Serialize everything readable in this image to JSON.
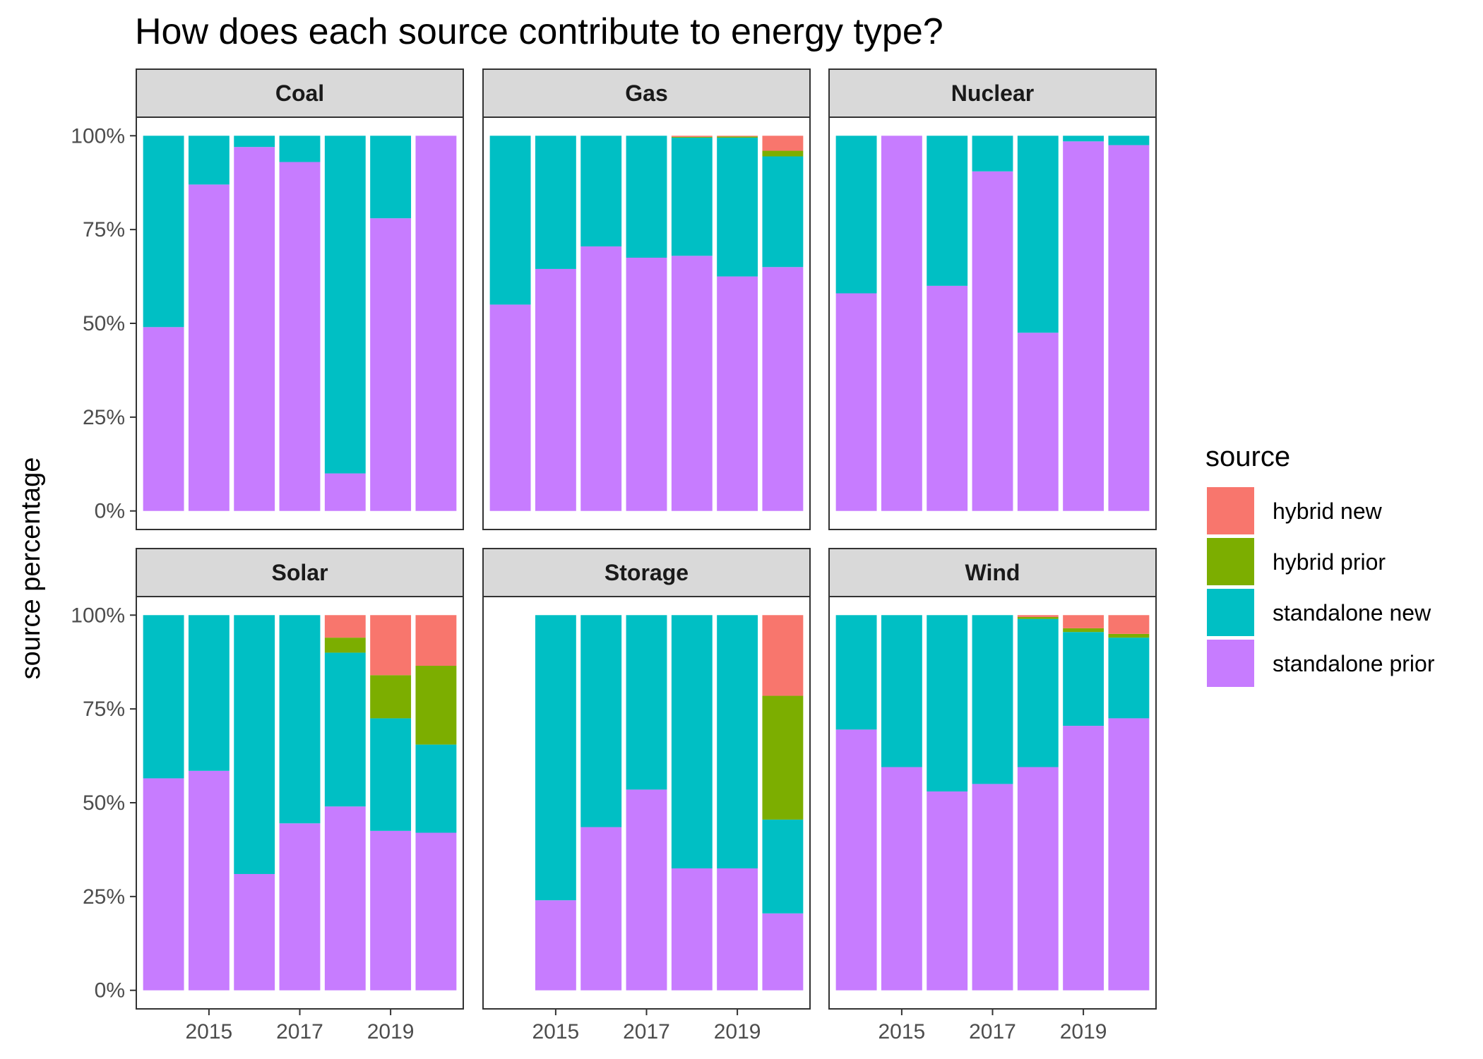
{
  "chart_data": {
    "type": "bar",
    "stacked": true,
    "title": "How does each source contribute to energy type?",
    "xlabel": "",
    "ylabel": "source percentage",
    "ylim": [
      0,
      1
    ],
    "y_ticks": [
      "0%",
      "25%",
      "50%",
      "75%",
      "100%"
    ],
    "y_tick_values": [
      0,
      0.25,
      0.5,
      0.75,
      1
    ],
    "x": [
      2014,
      2015,
      2016,
      2017,
      2018,
      2019,
      2020
    ],
    "x_ticks": [
      2015,
      2017,
      2019
    ],
    "legend": {
      "title": "source",
      "position": "right",
      "items": [
        {
          "name": "hybrid new",
          "color": "#F8766D"
        },
        {
          "name": "hybrid prior",
          "color": "#7CAE00"
        },
        {
          "name": "standalone new",
          "color": "#00BFC4"
        },
        {
          "name": "standalone prior",
          "color": "#C77CFF"
        }
      ]
    },
    "facets": [
      {
        "name": "Coal",
        "series": {
          "standalone prior": [
            0.49,
            0.87,
            0.97,
            0.93,
            0.1,
            0.78,
            1.0
          ],
          "standalone new": [
            0.51,
            0.13,
            0.03,
            0.07,
            0.9,
            0.22,
            0.0
          ],
          "hybrid prior": [
            0,
            0,
            0,
            0,
            0,
            0,
            0
          ],
          "hybrid new": [
            0,
            0,
            0,
            0,
            0,
            0,
            0
          ]
        }
      },
      {
        "name": "Gas",
        "series": {
          "standalone prior": [
            0.55,
            0.645,
            0.705,
            0.675,
            0.68,
            0.625,
            0.65
          ],
          "standalone new": [
            0.45,
            0.355,
            0.295,
            0.325,
            0.315,
            0.37,
            0.295
          ],
          "hybrid prior": [
            0,
            0,
            0,
            0,
            0.002,
            0.003,
            0.015
          ],
          "hybrid new": [
            0,
            0,
            0,
            0,
            0.003,
            0.002,
            0.04
          ]
        }
      },
      {
        "name": "Nuclear",
        "series": {
          "standalone prior": [
            0.58,
            1.0,
            0.6,
            0.905,
            0.475,
            0.985,
            0.975
          ],
          "standalone new": [
            0.42,
            0.0,
            0.4,
            0.095,
            0.525,
            0.015,
            0.025
          ],
          "hybrid prior": [
            0,
            0,
            0,
            0,
            0,
            0,
            0
          ],
          "hybrid new": [
            0,
            0,
            0,
            0,
            0,
            0,
            0
          ]
        }
      },
      {
        "name": "Solar",
        "series": {
          "standalone prior": [
            0.565,
            0.585,
            0.31,
            0.445,
            0.49,
            0.425,
            0.42
          ],
          "standalone new": [
            0.435,
            0.415,
            0.69,
            0.555,
            0.41,
            0.3,
            0.235
          ],
          "hybrid prior": [
            0,
            0,
            0,
            0,
            0.04,
            0.115,
            0.21
          ],
          "hybrid new": [
            0,
            0,
            0,
            0,
            0.06,
            0.16,
            0.135
          ]
        }
      },
      {
        "name": "Storage",
        "series": {
          "standalone prior": [
            null,
            0.24,
            0.435,
            0.535,
            0.325,
            0.325,
            0.205
          ],
          "standalone new": [
            null,
            0.76,
            0.565,
            0.465,
            0.675,
            0.675,
            0.25
          ],
          "hybrid prior": [
            null,
            0,
            0,
            0,
            0,
            0,
            0.33
          ],
          "hybrid new": [
            null,
            0,
            0,
            0,
            0,
            0,
            0.215
          ]
        }
      },
      {
        "name": "Wind",
        "series": {
          "standalone prior": [
            0.695,
            0.595,
            0.53,
            0.55,
            0.595,
            0.705,
            0.725
          ],
          "standalone new": [
            0.305,
            0.405,
            0.47,
            0.45,
            0.395,
            0.25,
            0.215
          ],
          "hybrid prior": [
            0,
            0,
            0,
            0,
            0.005,
            0.01,
            0.01
          ],
          "hybrid new": [
            0,
            0,
            0,
            0,
            0.005,
            0.035,
            0.05
          ]
        }
      }
    ]
  }
}
